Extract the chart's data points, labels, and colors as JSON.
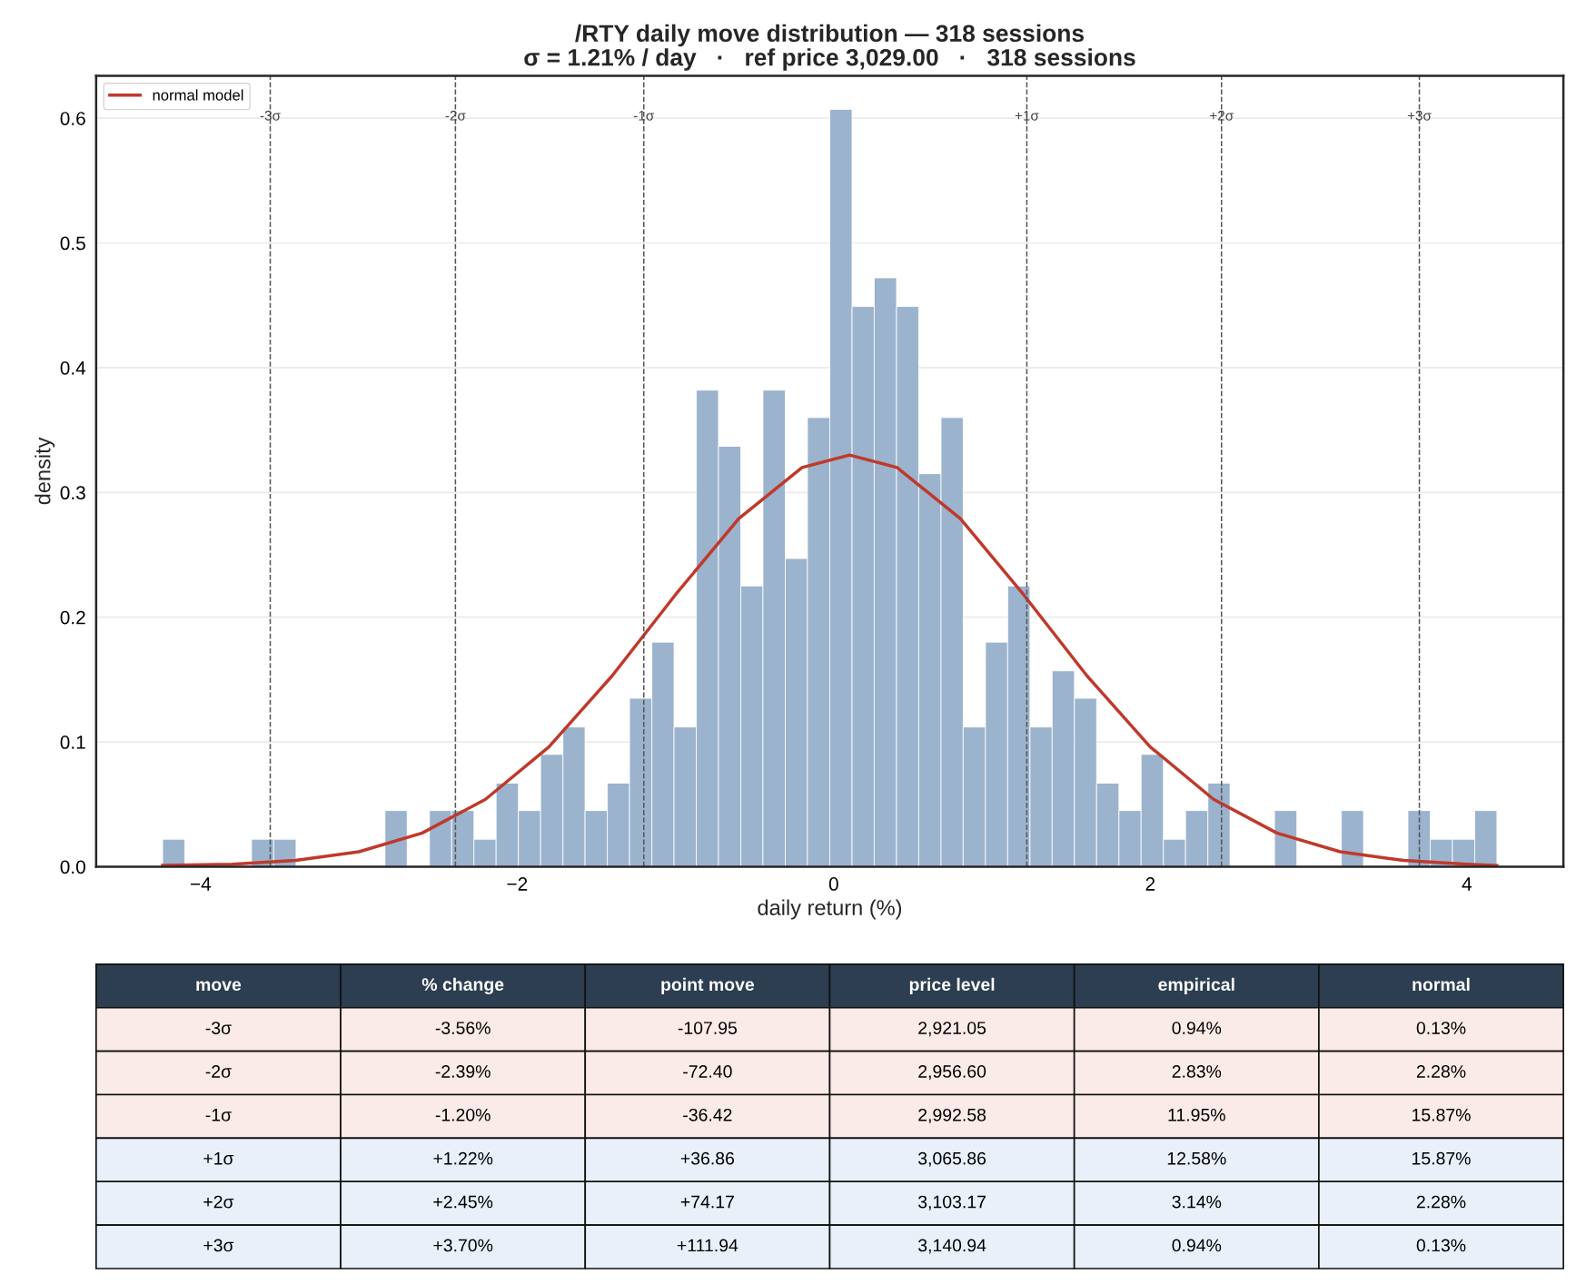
{
  "chart_data": {
    "type": "histogram",
    "title": "/RTY daily move distribution — 318 sessions\nσ = 1.21% / day   ·   ref price 3,029.00   ·   318 sessions",
    "xlabel": "daily return (%)",
    "ylabel": "density",
    "bins": [
      -4.24,
      -4.1,
      -3.959,
      -3.819,
      -3.678,
      -3.538,
      -3.397,
      -3.257,
      -3.116,
      -2.976,
      -2.835,
      -2.695,
      -2.554,
      -2.414,
      -2.273,
      -2.133,
      -1.992,
      -1.852,
      -1.711,
      -1.571,
      -1.43,
      -1.29,
      -1.149,
      -1.009,
      -0.868,
      -0.728,
      -0.587,
      -0.447,
      -0.306,
      -0.166,
      -0.025,
      0.116,
      0.256,
      0.397,
      0.537,
      0.678,
      0.818,
      0.959,
      1.099,
      1.24,
      1.38,
      1.521,
      1.661,
      1.802,
      1.942,
      2.083,
      2.223,
      2.364,
      2.504,
      2.645,
      2.785,
      2.926,
      3.066,
      3.207,
      3.347,
      3.488,
      3.628,
      3.769,
      3.909,
      4.05,
      4.19
    ],
    "values": [
      0.022,
      0,
      0,
      0,
      0.022,
      0.022,
      0,
      0,
      0,
      0,
      0.045,
      0,
      0.045,
      0.045,
      0.022,
      0.067,
      0.045,
      0.09,
      0.112,
      0.045,
      0.067,
      0.135,
      0.18,
      0.112,
      0.382,
      0.337,
      0.225,
      0.382,
      0.247,
      0.36,
      0.607,
      0.449,
      0.472,
      0.449,
      0.315,
      0.36,
      0.112,
      0.18,
      0.225,
      0.112,
      0.157,
      0.135,
      0.067,
      0.045,
      0.09,
      0.022,
      0.045,
      0.067,
      0,
      0,
      0.045,
      0,
      0,
      0.045,
      0,
      0,
      0.045,
      0.022,
      0.022,
      0.045
    ],
    "color": "#9bb3cd",
    "series": [
      {
        "type": "line",
        "name": "normal model",
        "color": "#c0392b",
        "x": [
          -4.24,
          -3.8,
          -3.4,
          -3.0,
          -2.6,
          -2.2,
          -1.8,
          -1.4,
          -1.0,
          -0.6,
          -0.2,
          0.1,
          0.4,
          0.8,
          1.2,
          1.6,
          2.0,
          2.4,
          2.8,
          3.2,
          3.6,
          4.0,
          4.19
        ],
        "values": [
          0.001,
          0.002,
          0.005,
          0.012,
          0.027,
          0.054,
          0.096,
          0.153,
          0.218,
          0.279,
          0.32,
          0.33,
          0.32,
          0.279,
          0.218,
          0.153,
          0.096,
          0.054,
          0.027,
          0.012,
          0.005,
          0.002,
          0.001
        ]
      }
    ],
    "ref_lines": [
      {
        "axis": "x",
        "value": -3.56,
        "label": "-3σ",
        "color": "#555555",
        "line_style": "dashed"
      },
      {
        "axis": "x",
        "value": -2.39,
        "label": "-2σ",
        "color": "#555555",
        "line_style": "dashed"
      },
      {
        "axis": "x",
        "value": -1.2,
        "label": "-1σ",
        "color": "#555555",
        "line_style": "dashed"
      },
      {
        "axis": "x",
        "value": 1.22,
        "label": "+1σ",
        "color": "#555555",
        "line_style": "dashed"
      },
      {
        "axis": "x",
        "value": 2.45,
        "label": "+2σ",
        "color": "#555555",
        "line_style": "dashed"
      },
      {
        "axis": "x",
        "value": 3.7,
        "label": "+3σ",
        "color": "#555555",
        "line_style": "dashed"
      }
    ],
    "xlim": [
      -4.66,
      4.61
    ],
    "xticks": [
      {
        "value": -4,
        "label": "−4"
      },
      {
        "value": -2,
        "label": "−2"
      },
      0,
      2,
      4
    ],
    "ylim": [
      0,
      0.634
    ],
    "yticks": [
      {
        "value": 0,
        "label": "0.0"
      },
      0.1,
      0.2,
      0.3,
      0.4,
      0.5,
      0.6
    ],
    "grid": "y",
    "legend": "top left",
    "annotations": [
      "move",
      "% change",
      "point move",
      "price level",
      "empirical",
      "normal",
      "-3σ",
      "-3.56%",
      "-107.95",
      "2,921.05",
      "0.94%",
      "0.13%",
      "-2σ",
      "-2.39%",
      "-72.40",
      "2,956.60",
      "2.83%",
      "2.28%",
      "-1σ",
      "-1.20%",
      "-36.42",
      "2,992.58",
      "11.95%",
      "15.87%",
      "+1σ",
      "+1.22%",
      "+36.86",
      "3,065.86",
      "12.58%",
      "15.87%",
      "+2σ",
      "+2.45%",
      "+74.17",
      "3,103.17",
      "3.14%",
      "2.28%",
      "+3σ",
      "+3.70%",
      "+111.94",
      "3,140.94",
      "0.94%",
      "0.13%"
    ]
  }
}
